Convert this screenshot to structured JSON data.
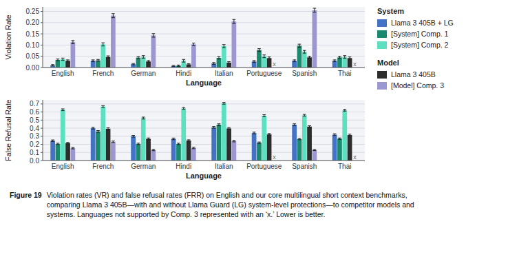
{
  "chart_data": [
    {
      "type": "bar",
      "xlabel": "Language",
      "ylabel": "Violation Rate",
      "categories": [
        "English",
        "French",
        "German",
        "Hindi",
        "Italian",
        "Portuguese",
        "Spanish",
        "Thai"
      ],
      "ylim": [
        0,
        0.27
      ],
      "yticks": [
        {
          "value": 0,
          "label": "0.00"
        },
        0.05,
        {
          "value": 0.1,
          "label": "0.10"
        },
        0.15,
        {
          "value": 0.2,
          "label": "0.20"
        },
        0.25
      ],
      "grid": true,
      "series": [
        {
          "name": "Llama 3 405B + LG",
          "group": "System",
          "color": "#4472c4",
          "values": [
            0.01,
            0.03,
            0.015,
            0.007,
            0.018,
            0.027,
            0.03,
            0.03
          ],
          "errors": [
            0.003,
            0.004,
            0.003,
            0.002,
            0.004,
            0.004,
            0.004,
            0.004
          ]
        },
        {
          "name": "[System] Comp. 1",
          "group": "System",
          "color": "#1a8a6e",
          "values": [
            0.034,
            0.032,
            0.044,
            0.008,
            0.043,
            0.078,
            0.097,
            0.045
          ],
          "errors": [
            0.004,
            0.004,
            0.005,
            0.003,
            0.005,
            0.006,
            0.007,
            0.005
          ]
        },
        {
          "name": "[System] Comp. 2",
          "group": "System",
          "color": "#5ce0c0",
          "values": [
            0.037,
            0.103,
            0.047,
            0.03,
            0.095,
            0.05,
            0.07,
            0.047
          ],
          "errors": [
            0.005,
            0.007,
            0.006,
            0.006,
            0.007,
            0.006,
            0.006,
            0.006
          ]
        },
        {
          "name": "Llama 3 405B",
          "group": "Model",
          "color": "#2d2d2d",
          "values": [
            0.03,
            0.047,
            0.027,
            0.014,
            0.022,
            0.042,
            0.045,
            0.042
          ],
          "errors": [
            0.004,
            0.005,
            0.004,
            0.003,
            0.004,
            0.005,
            0.005,
            0.005
          ]
        },
        {
          "name": "[Model] Comp. 3",
          "group": "Model",
          "color": "#9b97d0",
          "marker": "x",
          "values": [
            0.113,
            0.231,
            0.143,
            0.103,
            0.205,
            null,
            0.255,
            null
          ],
          "errors": [
            0.007,
            0.009,
            0.008,
            0.006,
            0.009,
            null,
            0.009,
            null
          ]
        }
      ]
    },
    {
      "type": "bar",
      "xlabel": "Language",
      "ylabel": "False Refusal Rate",
      "categories": [
        "English",
        "French",
        "German",
        "Hindi",
        "Italian",
        "Portuguese",
        "Spanish",
        "Thai"
      ],
      "ylim": [
        0,
        0.75
      ],
      "yticks": [
        {
          "value": 0,
          "label": "0.0"
        },
        0.1,
        0.2,
        0.3,
        0.4,
        0.5,
        0.6,
        0.7
      ],
      "grid": true,
      "series": [
        {
          "name": "Llama 3 405B + LG",
          "color": "#4472c4",
          "values": [
            0.245,
            0.4,
            0.3,
            0.268,
            0.41,
            0.34,
            0.443,
            0.32
          ],
          "errors": [
            0.01,
            0.011,
            0.011,
            0.01,
            0.011,
            0.011,
            0.011,
            0.011
          ]
        },
        {
          "name": "[System] Comp. 1",
          "color": "#1a8a6e",
          "values": [
            0.205,
            0.36,
            0.205,
            0.205,
            0.443,
            0.22,
            0.265,
            0.27
          ],
          "errors": [
            0.009,
            0.011,
            0.009,
            0.009,
            0.011,
            0.009,
            0.009,
            0.009
          ]
        },
        {
          "name": "[System] Comp. 2",
          "color": "#5ce0c0",
          "values": [
            0.628,
            0.668,
            0.525,
            0.645,
            0.708,
            0.555,
            0.56,
            0.622
          ],
          "errors": [
            0.011,
            0.011,
            0.012,
            0.011,
            0.011,
            0.012,
            0.011,
            0.011
          ]
        },
        {
          "name": "Llama 3 405B",
          "color": "#2d2d2d",
          "values": [
            0.215,
            0.393,
            0.268,
            0.247,
            0.397,
            0.323,
            0.42,
            0.315
          ],
          "errors": [
            0.009,
            0.011,
            0.011,
            0.009,
            0.011,
            0.011,
            0.011,
            0.011
          ]
        },
        {
          "name": "[Model] Comp. 3",
          "color": "#9b97d0",
          "marker": "x",
          "values": [
            0.153,
            0.232,
            0.13,
            0.155,
            0.24,
            null,
            0.13,
            null
          ],
          "errors": [
            0.009,
            0.009,
            0.009,
            0.009,
            0.009,
            null,
            0.007,
            null
          ]
        }
      ],
      "annotations": [
        "Figure 19",
        "Violation rates (VR) and false refusal rates (FRR) on English and our core multilingual short context benchmarks,\ncomparing Llama 3 405B—with and without Llama Guard (LG) system-level protections—to competitor models and\nsystems. Languages not supported by Comp. 3 represented with an ‘x.’ Lower is better."
      ]
    }
  ]
}
